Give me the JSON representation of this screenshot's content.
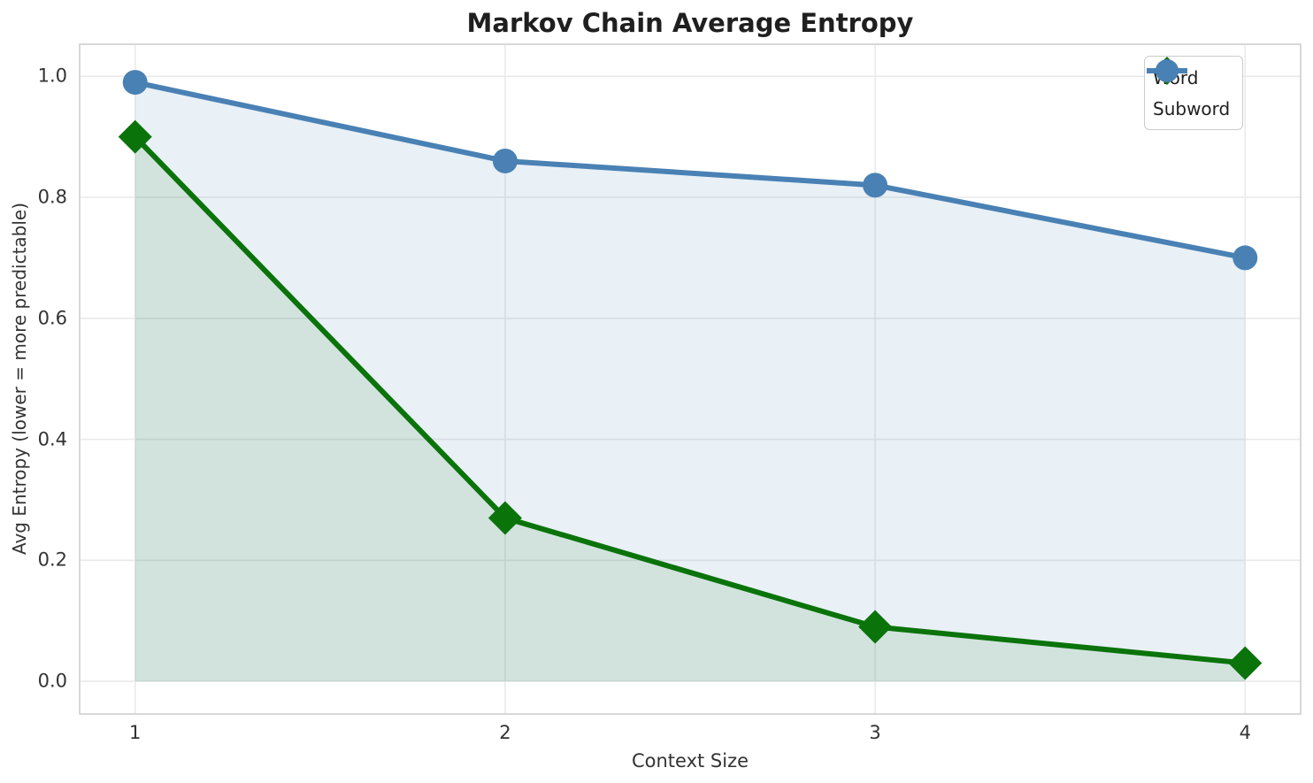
{
  "chart_data": {
    "type": "line",
    "title": "Markov Chain Average Entropy",
    "xlabel": "Context Size",
    "ylabel": "Avg Entropy (lower = more predictable)",
    "x": [
      1,
      2,
      3,
      4
    ],
    "series": [
      {
        "name": "Word",
        "values": [
          0.9,
          0.27,
          0.09,
          0.03
        ],
        "color": "#0a730a",
        "fill": "rgba(13,115,13,0.10)",
        "marker": "diamond"
      },
      {
        "name": "Subword",
        "values": [
          0.99,
          0.86,
          0.82,
          0.7
        ],
        "color": "#4981b4",
        "fill": "rgba(74,128,180,0.12)",
        "marker": "circle"
      }
    ],
    "xticks": [
      1,
      2,
      3,
      4
    ],
    "yticks": [
      0.0,
      0.2,
      0.4,
      0.6,
      0.8,
      1.0
    ],
    "xlim": [
      0.85,
      4.15
    ],
    "ylim": [
      -0.054,
      1.053
    ],
    "grid": true,
    "area_fill_to_zero": true,
    "legend_position": "upper right",
    "grid_color": "#eaeaea",
    "spine_color": "#d4d4d4",
    "line_width": 6
  }
}
